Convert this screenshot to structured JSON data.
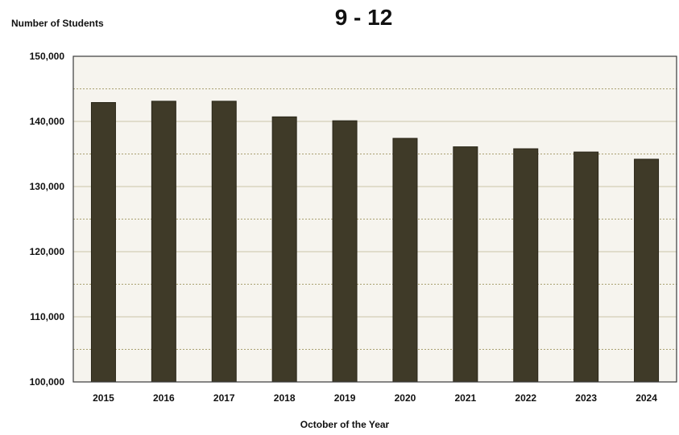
{
  "chart_data": {
    "type": "bar",
    "title": "9 - 12",
    "ylabel": "Number of Students",
    "xlabel": "October of the Year",
    "categories": [
      "2015",
      "2016",
      "2017",
      "2018",
      "2019",
      "2020",
      "2021",
      "2022",
      "2023",
      "2024"
    ],
    "values": [
      142900,
      143100,
      143100,
      140700,
      140100,
      137400,
      136100,
      135800,
      135300,
      134200
    ],
    "ylim": [
      100000,
      150000
    ],
    "yticks": [
      100000,
      110000,
      120000,
      130000,
      140000,
      150000
    ],
    "ytick_labels": [
      "100,000",
      "110,000",
      "120,000",
      "130,000",
      "140,000",
      "150,000"
    ],
    "minor_gridlines": [
      105000,
      115000,
      125000,
      135000,
      145000
    ],
    "grid": true,
    "legend": "none",
    "colors": {
      "bar": "#3f3a28",
      "bar_edge": "#2a2618",
      "plot_bg": "#f6f4ee",
      "grid": "#c9c4a8",
      "minor_grid": "#a9a070",
      "frame": "#3a3a3a"
    }
  }
}
